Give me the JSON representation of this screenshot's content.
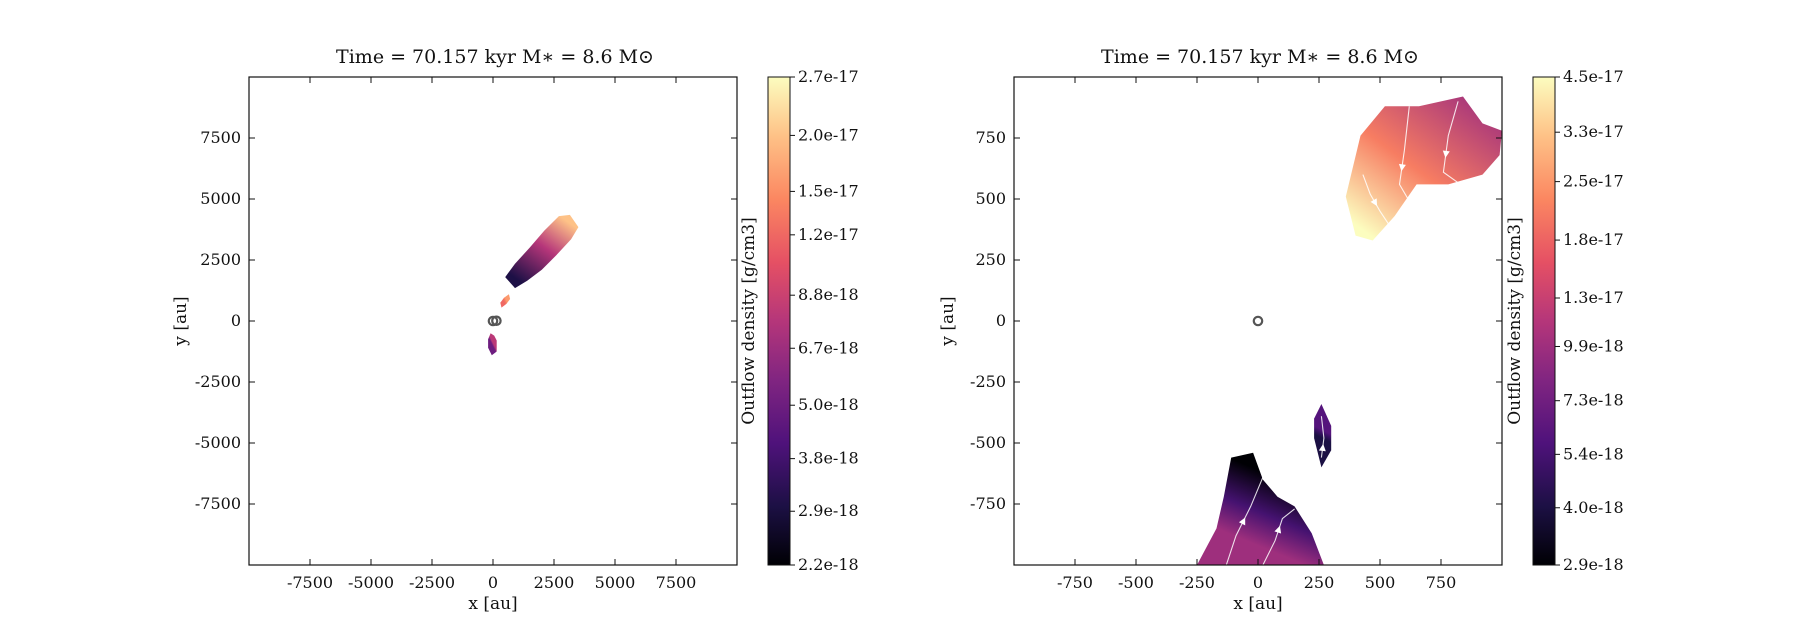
{
  "chart_data": [
    {
      "type": "heatmap",
      "title": "Time = 70.157 kyr    M$_*$ = 8.6 M$_\\odot$",
      "title_display": "Time = 70.157 kyr    M∗ = 8.6 M⊙",
      "xlabel": "x [au]",
      "ylabel": "y [au]",
      "xlim": [
        -10000,
        10000
      ],
      "ylim": [
        -10000,
        10000
      ],
      "xticks": [
        -7500,
        -5000,
        -2500,
        0,
        2500,
        5000,
        7500
      ],
      "yticks": [
        -7500,
        -5000,
        -2500,
        0,
        2500,
        5000,
        7500
      ],
      "xtick_labels": [
        "-7500",
        "-5000",
        "-2500",
        "0",
        "2500",
        "5000",
        "7500"
      ],
      "ytick_labels": [
        "-7500",
        "-5000",
        "-2500",
        "0",
        "2500",
        "5000",
        "7500"
      ],
      "grid": false,
      "colormap": "magma",
      "colorbar": {
        "label": "Outflow density [g/cm3]",
        "tick_labels": [
          "2.2e-18",
          "2.9e-18",
          "3.8e-18",
          "5.0e-18",
          "6.7e-18",
          "8.8e-18",
          "1.2e-17",
          "1.5e-17",
          "2.0e-17",
          "2.7e-17"
        ],
        "range": [
          2.2e-18,
          2.7e-17
        ],
        "scale": "log"
      },
      "regions": [
        {
          "name": "northeast lobe",
          "outline": [
            [
              500,
              1800
            ],
            [
              900,
              2350
            ],
            [
              1500,
              3000
            ],
            [
              2100,
              3700
            ],
            [
              2700,
              4300
            ],
            [
              3150,
              4350
            ],
            [
              3500,
              3850
            ],
            [
              3200,
              3350
            ],
            [
              2600,
              2700
            ],
            [
              2000,
              2100
            ],
            [
              1400,
              1650
            ],
            [
              900,
              1350
            ]
          ],
          "dense_end": [
            2950,
            4150
          ],
          "value_range": [
            3e-18,
            2e-17
          ]
        },
        {
          "name": "small knot",
          "outline": [
            [
              350,
              550
            ],
            [
              550,
              700
            ],
            [
              700,
              900
            ],
            [
              650,
              1100
            ],
            [
              450,
              950
            ],
            [
              300,
              750
            ]
          ],
          "dense_end": [
            550,
            850
          ],
          "value_range": [
            1.2e-17,
            1.6e-17
          ]
        },
        {
          "name": "southern knot",
          "outline": [
            [
              -100,
              -500
            ],
            [
              50,
              -600
            ],
            [
              150,
              -800
            ],
            [
              150,
              -1250
            ],
            [
              -50,
              -1400
            ],
            [
              -200,
              -1100
            ],
            [
              -200,
              -750
            ]
          ],
          "dense_end": [
            0,
            -900
          ],
          "value_range": [
            5e-18,
            8e-18
          ]
        }
      ],
      "markers": [
        {
          "name": "sink marker",
          "x": 0,
          "y": 0
        },
        {
          "name": "sink marker",
          "x": 140,
          "y": 10
        }
      ]
    },
    {
      "type": "heatmap",
      "title": "Time = 70.157 kyr    M$_*$ = 8.6 M$_\\odot$",
      "title_display": "Time = 70.157 kyr    M∗ = 8.6 M⊙",
      "xlabel": "x [au]",
      "ylabel": "y [au]",
      "xlim": [
        -1000,
        1000
      ],
      "ylim": [
        -1000,
        1000
      ],
      "xticks": [
        -750,
        -500,
        -250,
        0,
        250,
        500,
        750
      ],
      "yticks": [
        -750,
        -500,
        -250,
        0,
        250,
        500,
        750
      ],
      "xtick_labels": [
        "-750",
        "-500",
        "-250",
        "0",
        "250",
        "500",
        "750"
      ],
      "ytick_labels": [
        "-750",
        "-500",
        "-250",
        "0",
        "250",
        "500",
        "750"
      ],
      "grid": false,
      "colormap": "magma",
      "colorbar": {
        "label": "Outflow density [g/cm3]",
        "tick_labels": [
          "2.9e-18",
          "4.0e-18",
          "5.4e-18",
          "7.3e-18",
          "9.9e-18",
          "1.3e-17",
          "1.8e-17",
          "2.5e-17",
          "3.3e-17",
          "4.5e-17"
        ],
        "range": [
          2.9e-18,
          4.5e-17
        ],
        "scale": "log"
      },
      "regions": [
        {
          "name": "northeast lobe",
          "outline": [
            [
              360,
              510
            ],
            [
              420,
              760
            ],
            [
              520,
              880
            ],
            [
              660,
              880
            ],
            [
              840,
              920
            ],
            [
              920,
              810
            ],
            [
              1000,
              780
            ],
            [
              990,
              680
            ],
            [
              920,
              600
            ],
            [
              780,
              560
            ],
            [
              650,
              560
            ],
            [
              560,
              430
            ],
            [
              470,
              330
            ],
            [
              400,
              350
            ]
          ],
          "dense_end": [
            460,
            350
          ],
          "value_range": [
            1e-17,
            4.5e-17
          ]
        },
        {
          "name": "southern lobe",
          "outline": [
            [
              -250,
              -1000
            ],
            [
              -170,
              -850
            ],
            [
              -140,
              -720
            ],
            [
              -110,
              -560
            ],
            [
              -20,
              -540
            ],
            [
              20,
              -650
            ],
            [
              80,
              -720
            ],
            [
              150,
              -760
            ],
            [
              220,
              -870
            ],
            [
              270,
              -1000
            ]
          ],
          "dense_end": [
            -50,
            -900
          ],
          "value_range": [
            2.9e-18,
            9.9e-18
          ]
        },
        {
          "name": "small knot",
          "outline": [
            [
              260,
              -340
            ],
            [
              300,
              -430
            ],
            [
              300,
              -530
            ],
            [
              260,
              -600
            ],
            [
              230,
              -480
            ],
            [
              230,
              -400
            ]
          ],
          "dense_end": [
            270,
            -450
          ],
          "value_range": [
            4e-18,
            6e-18
          ]
        }
      ],
      "streamlines": [
        {
          "points": [
            [
              430,
              600
            ],
            [
              460,
              520
            ],
            [
              500,
              450
            ],
            [
              560,
              360
            ]
          ]
        },
        {
          "points": [
            [
              620,
              880
            ],
            [
              600,
              700
            ],
            [
              580,
              560
            ],
            [
              650,
              440
            ],
            [
              760,
              410
            ]
          ]
        },
        {
          "points": [
            [
              820,
              900
            ],
            [
              780,
              760
            ],
            [
              760,
              610
            ],
            [
              830,
              560
            ],
            [
              930,
              580
            ]
          ]
        },
        {
          "points": [
            [
              -130,
              -1000
            ],
            [
              -90,
              -880
            ],
            [
              -30,
              -760
            ],
            [
              20,
              -640
            ]
          ]
        },
        {
          "points": [
            [
              20,
              -1000
            ],
            [
              70,
              -900
            ],
            [
              100,
              -810
            ],
            [
              150,
              -770
            ]
          ]
        },
        {
          "points": [
            [
              260,
              -560
            ],
            [
              270,
              -480
            ],
            [
              260,
              -390
            ]
          ]
        }
      ],
      "markers": [
        {
          "name": "sink marker",
          "x": 0,
          "y": 0
        }
      ]
    }
  ]
}
